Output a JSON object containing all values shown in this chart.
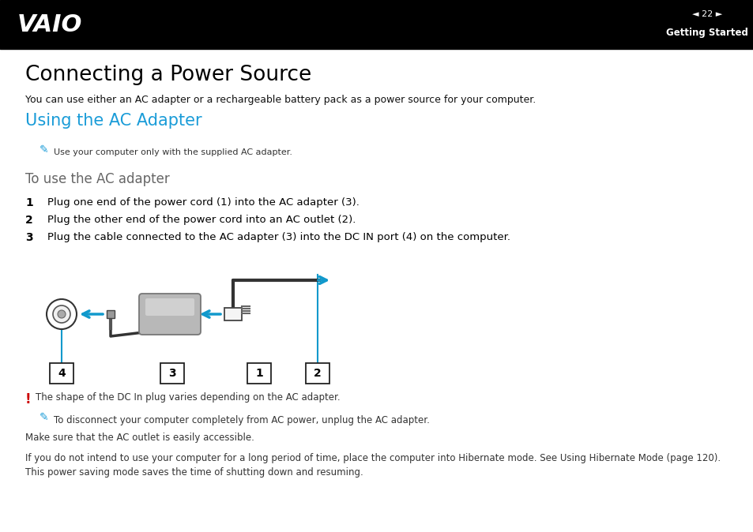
{
  "header_bg": "#000000",
  "header_text_color": "#ffffff",
  "page_number": "22",
  "section_title": "Getting Started",
  "title": "Connecting a Power Source",
  "subtitle": "You can use either an AC adapter or a rechargeable battery pack as a power source for your computer.",
  "section_heading": "Using the AC Adapter",
  "section_heading_color": "#1a9cd8",
  "note1": "Use your computer only with the supplied AC adapter.",
  "procedure_title": "To use the AC adapter",
  "step1": "Plug one end of the power cord (1) into the AC adapter (3).",
  "step2": "Plug the other end of the power cord into an AC outlet (2).",
  "step3_pre": "Plug the cable connected to the AC adapter (3) into the ",
  "step3_bold": "DC IN",
  "step3_post": " port (4) on the computer.",
  "warning_text": "The shape of the DC In plug varies depending on the AC adapter.",
  "warning_color": "#cc0000",
  "note_color": "#1a9cd8",
  "note2_line1": "To disconnect your computer completely from AC power, unplug the AC adapter.",
  "note2_line2": "Make sure that the AC outlet is easily accessible.",
  "note2_pre": "If you do not intend to use your computer for a long period of time, place the computer into Hibernate mode. See ",
  "note2_bold": "Using Hibernate Mode",
  "note2_link": " (page 120).",
  "note2_link_color": "#3333cc",
  "note2_last": "This power saving mode saves the time of shutting down and resuming.",
  "bg_color": "#ffffff",
  "arrow_color": "#1199cc",
  "text_color": "#111111",
  "small_text_color": "#333333"
}
